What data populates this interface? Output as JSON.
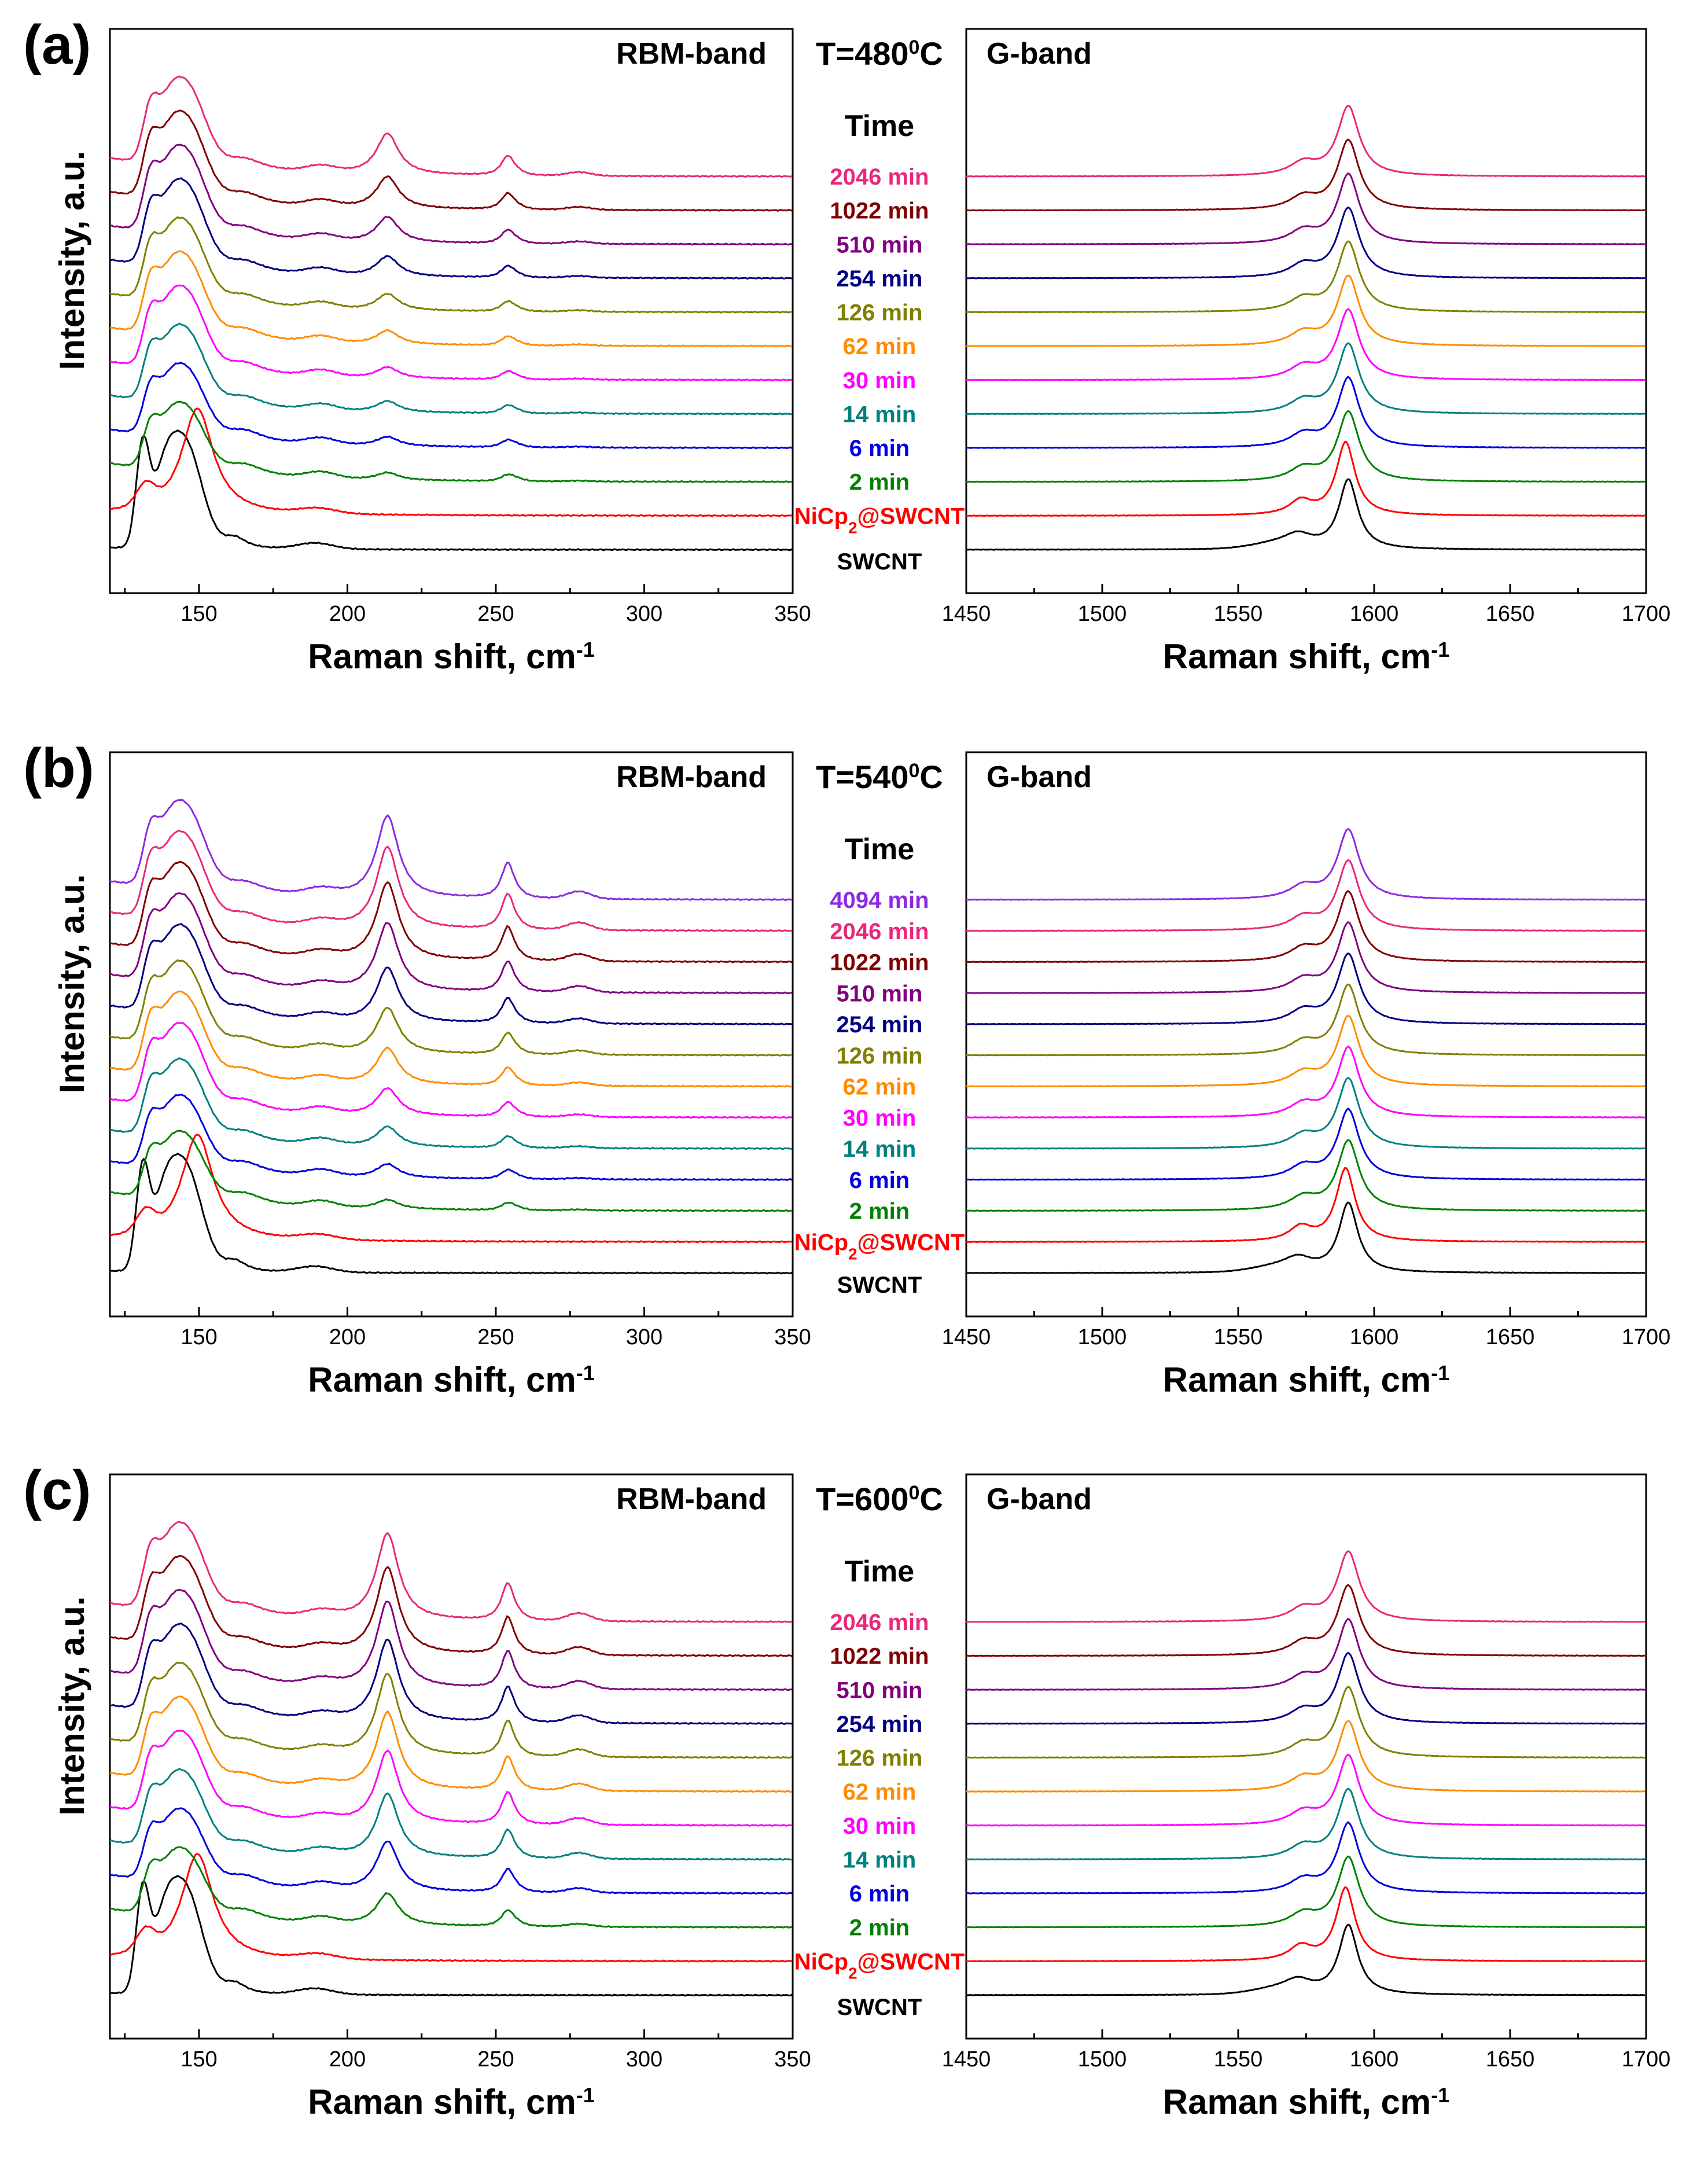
{
  "chart_data": [
    {
      "type": "line",
      "panel": "(a)",
      "temperature": "T=480",
      "temperature_unit": "0C",
      "band_titles": {
        "rbm": "RBM-band",
        "g": "G-band"
      },
      "legend_title": "Time",
      "xlabel": "Raman shift, cm",
      "xlabel_superscript": "-1",
      "ylabel": "Intensity, a.u.",
      "rbm_xlim": [
        120,
        350
      ],
      "g_xlim": [
        1450,
        1700
      ],
      "rbm_ticks": [
        "150",
        "200",
        "250",
        "300",
        "350"
      ],
      "g_ticks": [
        "1450",
        "1500",
        "1550",
        "1600",
        "1650",
        "1700"
      ],
      "series": [
        {
          "name": "SWCNT",
          "label": "SWCNT",
          "color": "#000000",
          "offset": 0,
          "rbm_scale": 1.0,
          "peak_213": 0.0,
          "g_scale": 1.0
        },
        {
          "name": "NiCp2@SWCNT",
          "label": "NiCp",
          "sub": "2",
          "label_suffix": "@SWCNT",
          "color": "#ff0000",
          "offset": 1,
          "rbm_scale": 1.0,
          "peak_213": 0.0,
          "g_scale": 1.0
        },
        {
          "name": "2 min",
          "label": "2 min",
          "color": "#008000",
          "offset": 2,
          "rbm_scale": 0.7,
          "peak_213": 0.08,
          "g_scale": 1.0
        },
        {
          "name": "6 min",
          "label": "6 min",
          "color": "#0000e0",
          "offset": 3,
          "rbm_scale": 0.75,
          "peak_213": 0.1,
          "g_scale": 1.0
        },
        {
          "name": "14 min",
          "label": "14 min",
          "color": "#008080",
          "offset": 4,
          "rbm_scale": 0.8,
          "peak_213": 0.12,
          "g_scale": 1.0
        },
        {
          "name": "30 min",
          "label": "30 min",
          "color": "#ff00ff",
          "offset": 5,
          "rbm_scale": 0.85,
          "peak_213": 0.12,
          "g_scale": 1.0
        },
        {
          "name": "62 min",
          "label": "62 min",
          "color": "#ff8c00",
          "offset": 6,
          "rbm_scale": 0.85,
          "peak_213": 0.15,
          "g_scale": 1.0
        },
        {
          "name": "126 min",
          "label": "126 min",
          "color": "#808000",
          "offset": 7,
          "rbm_scale": 0.85,
          "peak_213": 0.18,
          "g_scale": 1.0
        },
        {
          "name": "254 min",
          "label": "254 min",
          "color": "#000080",
          "offset": 8,
          "rbm_scale": 0.9,
          "peak_213": 0.22,
          "g_scale": 1.0
        },
        {
          "name": "510 min",
          "label": "510 min",
          "color": "#800080",
          "offset": 9,
          "rbm_scale": 0.9,
          "peak_213": 0.28,
          "g_scale": 1.0
        },
        {
          "name": "1022 min",
          "label": "1022 min",
          "color": "#800000",
          "offset": 10,
          "rbm_scale": 0.9,
          "peak_213": 0.35,
          "g_scale": 1.0
        },
        {
          "name": "2046 min",
          "label": "2046 min",
          "color": "#e8297a",
          "offset": 11,
          "rbm_scale": 0.9,
          "peak_213": 0.45,
          "g_scale": 1.0
        }
      ]
    },
    {
      "type": "line",
      "panel": "(b)",
      "temperature": "T=540",
      "temperature_unit": "0C",
      "band_titles": {
        "rbm": "RBM-band",
        "g": "G-band"
      },
      "legend_title": "Time",
      "xlabel": "Raman shift, cm",
      "xlabel_superscript": "-1",
      "ylabel": "Intensity, a.u.",
      "rbm_xlim": [
        120,
        350
      ],
      "g_xlim": [
        1450,
        1700
      ],
      "rbm_ticks": [
        "150",
        "200",
        "250",
        "300",
        "350"
      ],
      "g_ticks": [
        "1450",
        "1500",
        "1550",
        "1600",
        "1650",
        "1700"
      ],
      "series": [
        {
          "name": "SWCNT",
          "label": "SWCNT",
          "color": "#000000",
          "offset": 0,
          "rbm_scale": 1.0,
          "peak_213": 0.0,
          "g_scale": 1.0
        },
        {
          "name": "NiCp2@SWCNT",
          "label": "NiCp",
          "sub": "2",
          "label_suffix": "@SWCNT",
          "color": "#ff0000",
          "offset": 1,
          "rbm_scale": 1.0,
          "peak_213": 0.0,
          "g_scale": 1.0
        },
        {
          "name": "2 min",
          "label": "2 min",
          "color": "#008000",
          "offset": 2,
          "rbm_scale": 0.7,
          "peak_213": 0.1,
          "g_scale": 1.0
        },
        {
          "name": "6 min",
          "label": "6 min",
          "color": "#0000e0",
          "offset": 3,
          "rbm_scale": 0.75,
          "peak_213": 0.15,
          "g_scale": 1.0
        },
        {
          "name": "14 min",
          "label": "14 min",
          "color": "#008080",
          "offset": 4,
          "rbm_scale": 0.8,
          "peak_213": 0.22,
          "g_scale": 1.0
        },
        {
          "name": "30 min",
          "label": "30 min",
          "color": "#ff00ff",
          "offset": 5,
          "rbm_scale": 0.85,
          "peak_213": 0.3,
          "g_scale": 1.0
        },
        {
          "name": "62 min",
          "label": "62 min",
          "color": "#ff8c00",
          "offset": 6,
          "rbm_scale": 0.85,
          "peak_213": 0.4,
          "g_scale": 1.0
        },
        {
          "name": "126 min",
          "label": "126 min",
          "color": "#808000",
          "offset": 7,
          "rbm_scale": 0.85,
          "peak_213": 0.5,
          "g_scale": 1.0
        },
        {
          "name": "254 min",
          "label": "254 min",
          "color": "#000080",
          "offset": 8,
          "rbm_scale": 0.9,
          "peak_213": 0.6,
          "g_scale": 1.0
        },
        {
          "name": "510 min",
          "label": "510 min",
          "color": "#800080",
          "offset": 9,
          "rbm_scale": 0.9,
          "peak_213": 0.75,
          "g_scale": 1.0
        },
        {
          "name": "1022 min",
          "label": "1022 min",
          "color": "#800000",
          "offset": 10,
          "rbm_scale": 0.9,
          "peak_213": 0.85,
          "g_scale": 1.0
        },
        {
          "name": "2046 min",
          "label": "2046 min",
          "color": "#e8297a",
          "offset": 11,
          "rbm_scale": 0.9,
          "peak_213": 0.9,
          "g_scale": 1.0
        },
        {
          "name": "4094 min",
          "label": "4094 min",
          "color": "#8a2be2",
          "offset": 12,
          "rbm_scale": 0.9,
          "peak_213": 0.9,
          "g_scale": 1.0
        }
      ]
    },
    {
      "type": "line",
      "panel": "(c)",
      "temperature": "T=600",
      "temperature_unit": "0C",
      "band_titles": {
        "rbm": "RBM-band",
        "g": "G-band"
      },
      "legend_title": "Time",
      "xlabel": "Raman shift, cm",
      "xlabel_superscript": "-1",
      "ylabel": "Intensity, a.u.",
      "rbm_xlim": [
        120,
        350
      ],
      "g_xlim": [
        1450,
        1700
      ],
      "rbm_ticks": [
        "150",
        "200",
        "250",
        "300",
        "350"
      ],
      "g_ticks": [
        "1450",
        "1500",
        "1550",
        "1600",
        "1650",
        "1700"
      ],
      "series": [
        {
          "name": "SWCNT",
          "label": "SWCNT",
          "color": "#000000",
          "offset": 0,
          "rbm_scale": 1.0,
          "peak_213": 0.0,
          "g_scale": 1.0
        },
        {
          "name": "NiCp2@SWCNT",
          "label": "NiCp",
          "sub": "2",
          "label_suffix": "@SWCNT",
          "color": "#ff0000",
          "offset": 1,
          "rbm_scale": 1.0,
          "peak_213": 0.0,
          "g_scale": 1.0
        },
        {
          "name": "2 min",
          "label": "2 min",
          "color": "#008000",
          "offset": 2,
          "rbm_scale": 0.7,
          "peak_213": 0.35,
          "g_scale": 1.0
        },
        {
          "name": "6 min",
          "label": "6 min",
          "color": "#0000e0",
          "offset": 3,
          "rbm_scale": 0.75,
          "peak_213": 0.55,
          "g_scale": 1.0
        },
        {
          "name": "14 min",
          "label": "14 min",
          "color": "#008080",
          "offset": 4,
          "rbm_scale": 0.8,
          "peak_213": 0.7,
          "g_scale": 1.0
        },
        {
          "name": "30 min",
          "label": "30 min",
          "color": "#ff00ff",
          "offset": 5,
          "rbm_scale": 0.85,
          "peak_213": 0.8,
          "g_scale": 1.0
        },
        {
          "name": "62 min",
          "label": "62 min",
          "color": "#ff8c00",
          "offset": 6,
          "rbm_scale": 0.85,
          "peak_213": 0.85,
          "g_scale": 1.0
        },
        {
          "name": "126 min",
          "label": "126 min",
          "color": "#808000",
          "offset": 7,
          "rbm_scale": 0.85,
          "peak_213": 0.9,
          "g_scale": 1.0
        },
        {
          "name": "254 min",
          "label": "254 min",
          "color": "#000080",
          "offset": 8,
          "rbm_scale": 0.9,
          "peak_213": 0.9,
          "g_scale": 1.0
        },
        {
          "name": "510 min",
          "label": "510 min",
          "color": "#800080",
          "offset": 9,
          "rbm_scale": 0.9,
          "peak_213": 0.95,
          "g_scale": 1.0
        },
        {
          "name": "1022 min",
          "label": "1022 min",
          "color": "#800000",
          "offset": 10,
          "rbm_scale": 0.9,
          "peak_213": 0.95,
          "g_scale": 1.0
        },
        {
          "name": "2046 min",
          "label": "2046 min",
          "color": "#e8297a",
          "offset": 11,
          "rbm_scale": 0.9,
          "peak_213": 0.95,
          "g_scale": 1.0
        }
      ]
    }
  ]
}
